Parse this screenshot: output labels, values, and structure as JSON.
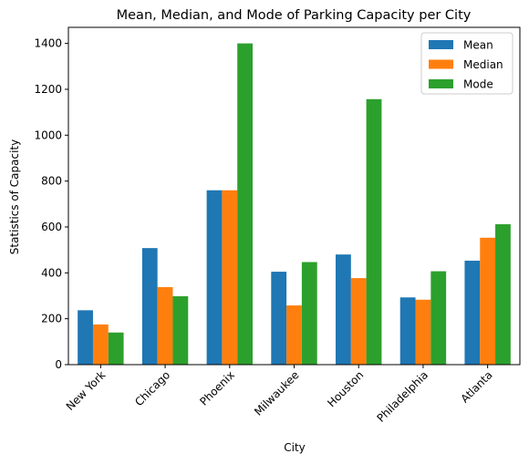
{
  "chart_data": {
    "type": "bar",
    "title": "Mean, Median, and Mode of Parking Capacity per City",
    "xlabel": "City",
    "ylabel": "Statistics of Capacity",
    "categories": [
      "New York",
      "Chicago",
      "Phoenix",
      "Milwaukee",
      "Houston",
      "Philadelphia",
      "Atlanta"
    ],
    "series": [
      {
        "name": "Mean",
        "color": "#1f77b4",
        "values": [
          237,
          508,
          760,
          405,
          480,
          293,
          453
        ]
      },
      {
        "name": "Median",
        "color": "#ff7f0e",
        "values": [
          175,
          338,
          760,
          258,
          377,
          283,
          553
        ]
      },
      {
        "name": "Mode",
        "color": "#2ca02c",
        "values": [
          140,
          298,
          1400,
          447,
          1157,
          407,
          612
        ]
      }
    ],
    "ylim": [
      0,
      1470
    ],
    "yticks": [
      0,
      200,
      400,
      600,
      800,
      1000,
      1200,
      1400
    ],
    "legend_position": "top-right",
    "grid": false
  }
}
